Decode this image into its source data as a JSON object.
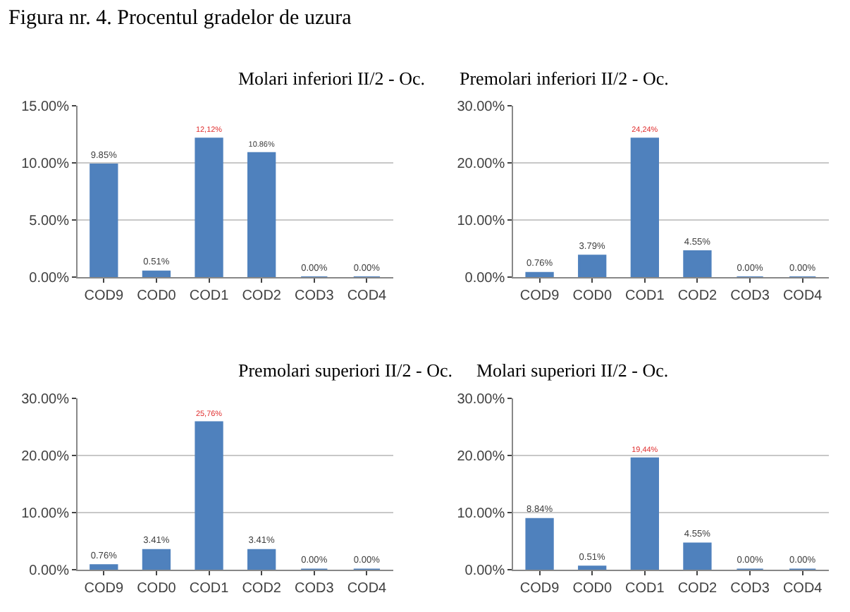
{
  "chart_data": [
    {
      "type": "bar",
      "title": "Molari inferiori II/2 - Oc.",
      "annotations": [
        "Figura nr. 4. Procentul gradelor de uzura"
      ],
      "categories": [
        "COD9",
        "COD0",
        "COD1",
        "COD2",
        "COD3",
        "COD4"
      ],
      "values": [
        9.85,
        0.51,
        12.12,
        10.86,
        0,
        0
      ],
      "value_labels": [
        "9.85%",
        "0.51%",
        "12,12%",
        "10.86%",
        "0.00%",
        "0.00%"
      ],
      "color": "#4f81bd",
      "ylim": [
        0,
        15
      ],
      "yticks": [
        {
          "value": 0,
          "label": "0.00%"
        },
        {
          "value": 5,
          "label": "5.00%"
        },
        {
          "value": 10,
          "label": "10.00%"
        },
        {
          "value": 15,
          "label": "15.00%"
        }
      ],
      "grid": "y",
      "legend": false
    },
    {
      "type": "bar",
      "title": "Premolari inferiori II/2 - Oc.",
      "categories": [
        "COD9",
        "COD0",
        "COD1",
        "COD2",
        "COD3",
        "COD4"
      ],
      "values": [
        0.76,
        3.79,
        24.24,
        4.55,
        0,
        0
      ],
      "value_labels": [
        "0.76%",
        "3.79%",
        "24,24%",
        "4.55%",
        "0.00%",
        "0.00%"
      ],
      "color": "#4f81bd",
      "ylim": [
        0,
        30
      ],
      "yticks": [
        {
          "value": 0,
          "label": "0.00%"
        },
        {
          "value": 10,
          "label": "10.00%"
        },
        {
          "value": 20,
          "label": "20.00%"
        },
        {
          "value": 30,
          "label": "30.00%"
        }
      ],
      "grid": "y",
      "legend": false
    },
    {
      "type": "bar",
      "title": "Premolari superiori II/2 - Oc.",
      "categories": [
        "COD9",
        "COD0",
        "COD1",
        "COD2",
        "COD3",
        "COD4"
      ],
      "values": [
        0.76,
        3.41,
        25.76,
        3.41,
        0,
        0
      ],
      "value_labels": [
        "0.76%",
        "3.41%",
        "25,76%",
        "3.41%",
        "0.00%",
        "0.00%"
      ],
      "color": "#4f81bd",
      "ylim": [
        0,
        30
      ],
      "yticks": [
        {
          "value": 0,
          "label": "0.00%"
        },
        {
          "value": 10,
          "label": "10.00%"
        },
        {
          "value": 20,
          "label": "20.00%"
        },
        {
          "value": 30,
          "label": "30.00%"
        }
      ],
      "grid": "y",
      "legend": false
    },
    {
      "type": "bar",
      "title": "Molari superiori II/2 - Oc.",
      "categories": [
        "COD9",
        "COD0",
        "COD1",
        "COD2",
        "COD3",
        "COD4"
      ],
      "values": [
        8.84,
        0.51,
        19.44,
        4.55,
        0,
        0
      ],
      "value_labels": [
        "8.84%",
        "0.51%",
        "19,44%",
        "4.55%",
        "0.00%",
        "0.00%"
      ],
      "color": "#4f81bd",
      "ylim": [
        0,
        30
      ],
      "yticks": [
        {
          "value": 0,
          "label": "0.00%"
        },
        {
          "value": 10,
          "label": "10.00%"
        },
        {
          "value": 20,
          "label": "20.00%"
        },
        {
          "value": 30,
          "label": "30.00%"
        }
      ],
      "grid": "y",
      "legend": false
    }
  ]
}
